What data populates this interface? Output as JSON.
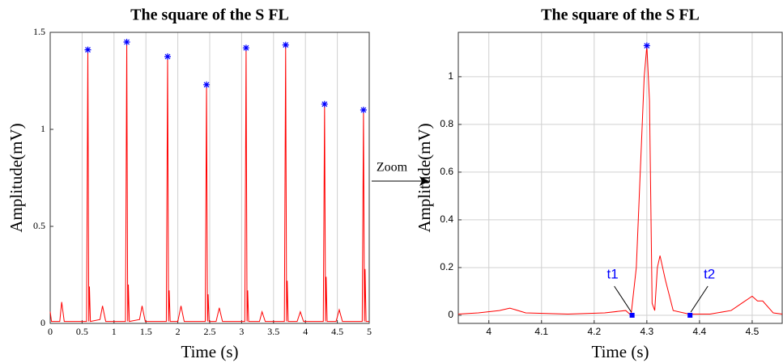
{
  "zoom_label": "Zoom",
  "chart_data": [
    {
      "type": "line",
      "title": "The square of the S FL",
      "xlabel": "Time (s)",
      "ylabel": "Amplitude(mV)",
      "xlim": [
        0,
        5
      ],
      "ylim": [
        0,
        1.5
      ],
      "xticks": [
        0,
        0.5,
        1,
        1.5,
        2,
        2.5,
        3,
        3.5,
        4,
        4.5,
        5
      ],
      "yticks": [
        0,
        0.5,
        1,
        1.5
      ],
      "grid": "x",
      "tick_font": "serif",
      "series": [
        {
          "style": "line",
          "color": "#ff0000",
          "x": [
            0,
            0.02,
            0.15,
            0.18,
            0.22,
            0.57,
            0.59,
            0.605,
            0.615,
            0.63,
            0.78,
            0.82,
            0.87,
            1.18,
            1.2,
            1.215,
            1.225,
            1.24,
            1.4,
            1.44,
            1.49,
            1.82,
            1.84,
            1.855,
            1.865,
            1.88,
            2.0,
            2.05,
            2.1,
            2.43,
            2.45,
            2.465,
            2.475,
            2.49,
            2.6,
            2.65,
            2.7,
            3.05,
            3.07,
            3.085,
            3.095,
            3.11,
            3.28,
            3.32,
            3.37,
            3.67,
            3.69,
            3.705,
            3.715,
            3.73,
            3.87,
            3.92,
            3.97,
            4.28,
            4.3,
            4.315,
            4.325,
            4.34,
            4.48,
            4.53,
            4.58,
            4.89,
            4.91,
            4.925,
            4.935,
            4.95,
            5.0
          ],
          "values": [
            0.06,
            0.01,
            0.01,
            0.11,
            0.01,
            0.01,
            1.41,
            0.01,
            0.19,
            0.01,
            0.02,
            0.09,
            0.01,
            0.01,
            1.45,
            0.01,
            0.2,
            0.01,
            0.02,
            0.09,
            0.01,
            0.01,
            1.375,
            0.01,
            0.17,
            0.01,
            0.01,
            0.09,
            0.01,
            0.01,
            1.23,
            0.01,
            0.15,
            0.01,
            0.01,
            0.08,
            0.01,
            0.01,
            1.42,
            0.01,
            0.17,
            0.01,
            0.01,
            0.06,
            0.01,
            0.01,
            1.435,
            0.01,
            0.22,
            0.01,
            0.01,
            0.06,
            0.01,
            0.01,
            1.13,
            0.01,
            0.24,
            0.01,
            0.01,
            0.07,
            0.01,
            0.01,
            1.1,
            0.01,
            0.28,
            0.01,
            0.01
          ]
        },
        {
          "style": "star",
          "color": "#0000ff",
          "x": [
            0.59,
            1.2,
            1.84,
            2.45,
            3.07,
            3.69,
            4.3,
            4.91
          ],
          "values": [
            1.41,
            1.45,
            1.375,
            1.23,
            1.42,
            1.435,
            1.13,
            1.1
          ]
        }
      ]
    },
    {
      "type": "line",
      "title": "The square of the S FL",
      "xlabel": "Time (s)",
      "ylabel": "Amplitude(mV)",
      "xlim": [
        3.942,
        4.557
      ],
      "ylim": [
        -0.034,
        1.186
      ],
      "xticks": [
        4,
        4.1,
        4.2,
        4.3,
        4.4,
        4.5
      ],
      "yticks": [
        0,
        0.2,
        0.4,
        0.6,
        0.8,
        1
      ],
      "grid": "both",
      "tick_font": "sans",
      "series": [
        {
          "style": "line",
          "color": "#ff0000",
          "x": [
            3.942,
            3.98,
            4.02,
            4.04,
            4.07,
            4.15,
            4.22,
            4.26,
            4.27,
            4.28,
            4.295,
            4.3,
            4.305,
            4.31,
            4.315,
            4.32,
            4.325,
            4.335,
            4.35,
            4.38,
            4.42,
            4.46,
            4.48,
            4.5,
            4.51,
            4.52,
            4.54,
            4.557
          ],
          "values": [
            0.005,
            0.01,
            0.02,
            0.03,
            0.01,
            0.005,
            0.01,
            0.02,
            0,
            0.2,
            1.0,
            1.13,
            0.9,
            0.05,
            0.02,
            0.2,
            0.25,
            0.15,
            0.02,
            0.005,
            0.005,
            0.02,
            0.05,
            0.08,
            0.06,
            0.06,
            0.01,
            0.005
          ]
        },
        {
          "style": "star",
          "color": "#0000ff",
          "x": [
            4.3
          ],
          "values": [
            1.13
          ]
        },
        {
          "style": "square",
          "color": "#0000ff",
          "x": [
            4.272,
            4.382
          ],
          "values": [
            0,
            0
          ],
          "labels": [
            "t1",
            "t2"
          ]
        }
      ]
    }
  ]
}
